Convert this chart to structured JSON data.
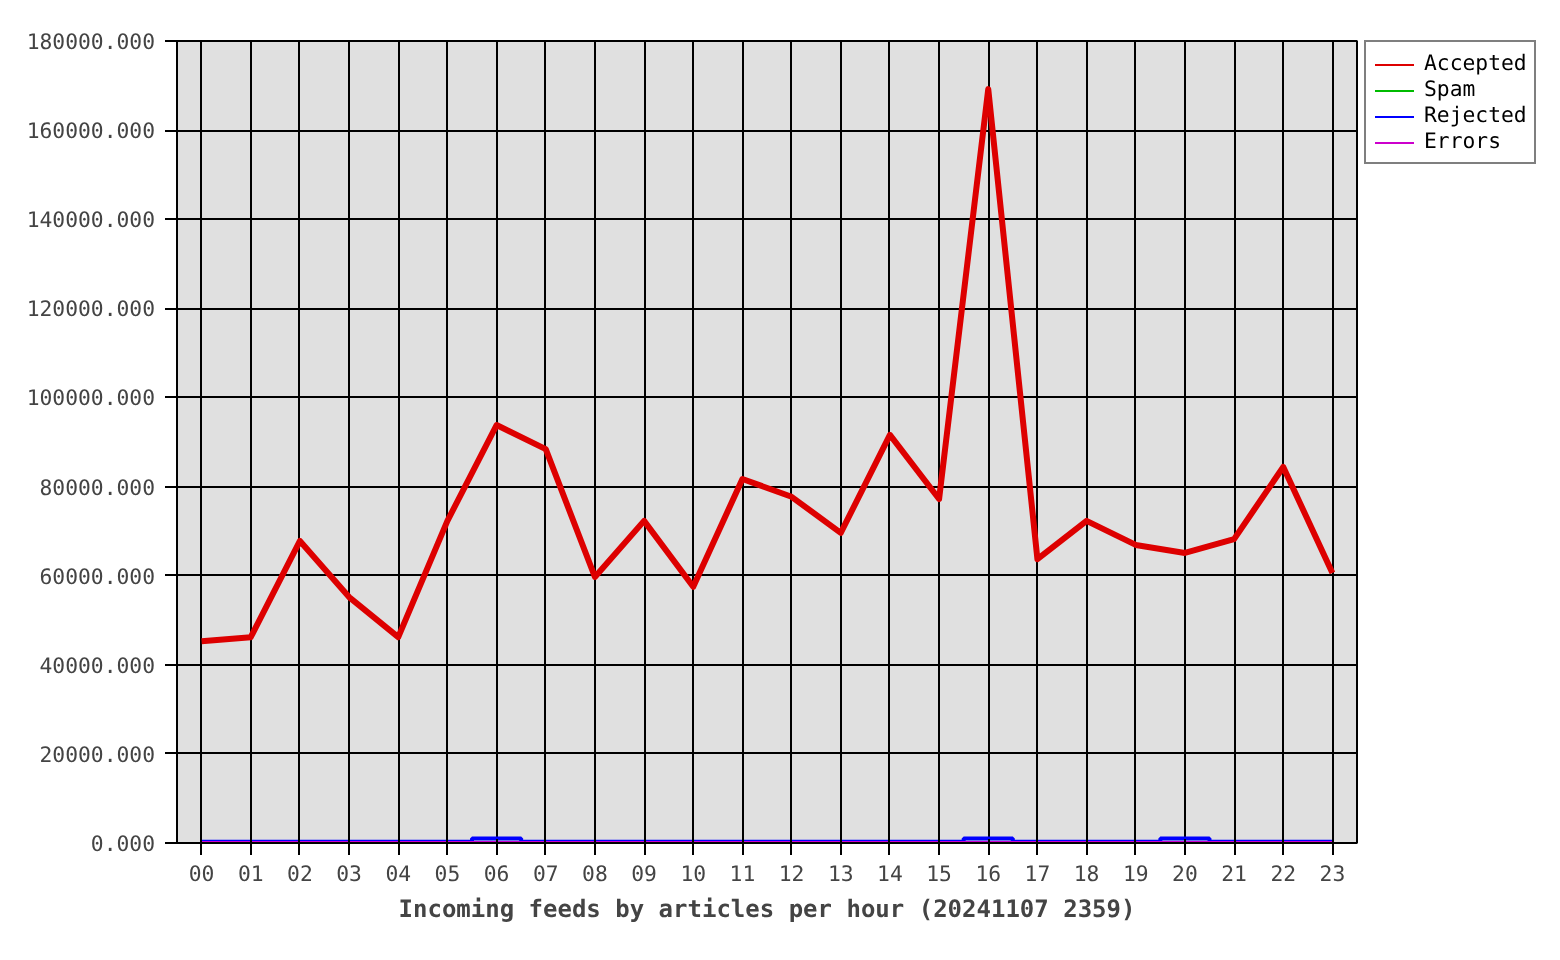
{
  "chart_data": {
    "type": "line",
    "xlabel": "Incoming feeds by articles per hour (20241107 2359)",
    "categories": [
      "00",
      "01",
      "02",
      "03",
      "04",
      "05",
      "06",
      "07",
      "08",
      "09",
      "10",
      "11",
      "12",
      "13",
      "14",
      "15",
      "16",
      "17",
      "18",
      "19",
      "20",
      "21",
      "22",
      "23"
    ],
    "series": [
      {
        "name": "Accepted",
        "color": "#dd0000",
        "values": [
          45300,
          46200,
          67800,
          55200,
          46200,
          72300,
          93800,
          88400,
          59700,
          72300,
          57500,
          81700,
          77700,
          69600,
          91600,
          77200,
          169200,
          63700,
          72300,
          66900,
          65100,
          68200,
          84400,
          60600
        ]
      },
      {
        "name": "Spam",
        "color": "#00bb00",
        "values": [
          null,
          null,
          null,
          null,
          null,
          null,
          null,
          null,
          null,
          null,
          null,
          null,
          null,
          null,
          null,
          null,
          null,
          null,
          null,
          null,
          null,
          null,
          null,
          null
        ]
      },
      {
        "name": "Rejected",
        "color": "#0000ff",
        "type": "step",
        "values": [
          300,
          300,
          300,
          300,
          300,
          300,
          1000,
          300,
          300,
          300,
          300,
          300,
          300,
          300,
          300,
          300,
          1000,
          300,
          300,
          300,
          1000,
          300,
          300,
          300
        ]
      },
      {
        "name": "Errors",
        "color": "#cc00cc",
        "values": [
          0,
          0,
          0,
          0,
          0,
          0,
          0,
          0,
          0,
          0,
          0,
          0,
          0,
          0,
          0,
          0,
          0,
          0,
          0,
          0,
          0,
          0,
          0,
          0
        ]
      }
    ],
    "ylim": [
      0,
      180000
    ],
    "yticks": [
      {
        "value": 0,
        "label": "0.000"
      },
      {
        "value": 20000,
        "label": "20000.000"
      },
      {
        "value": 40000,
        "label": "40000.000"
      },
      {
        "value": 60000,
        "label": "60000.000"
      },
      {
        "value": 80000,
        "label": "80000.000"
      },
      {
        "value": 100000,
        "label": "100000.000"
      },
      {
        "value": 120000,
        "label": "120000.000"
      },
      {
        "value": 140000,
        "label": "140000.000"
      },
      {
        "value": 160000,
        "label": "160000.000"
      },
      {
        "value": 180000,
        "label": "180000.000"
      }
    ],
    "grid": true,
    "legend": "top right",
    "marker": "none",
    "line_style": "solid"
  }
}
